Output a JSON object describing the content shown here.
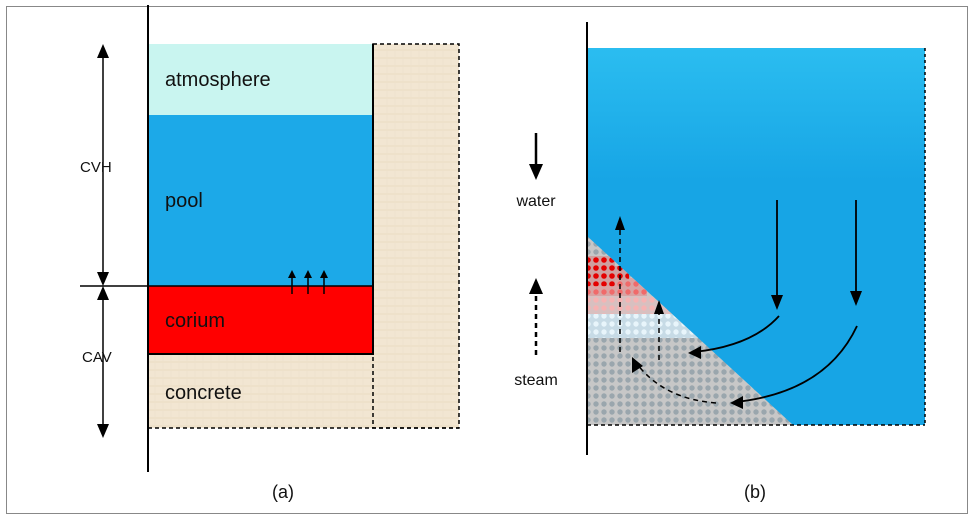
{
  "panel_a": {
    "caption": "(a)",
    "layers": {
      "atmosphere": "atmosphere",
      "pool": "pool",
      "corium": "corium",
      "concrete": "concrete"
    },
    "dimension_labels": {
      "upper": "CVH",
      "lower": "CAV"
    }
  },
  "panel_b": {
    "caption": "(b)",
    "legend": {
      "water": "water",
      "steam": "steam"
    }
  },
  "colors": {
    "atmosphere": "#c9f5f0",
    "pool": "#1ca9e8",
    "corium": "#ff0000",
    "concrete": "#f2e6d2",
    "debris_grey": "#a9a9a9",
    "debris_blue": "#8ecbea",
    "debris_pink": "#f3b0b0",
    "debris_salmon": "#f07070",
    "debris_red": "#e60000"
  }
}
